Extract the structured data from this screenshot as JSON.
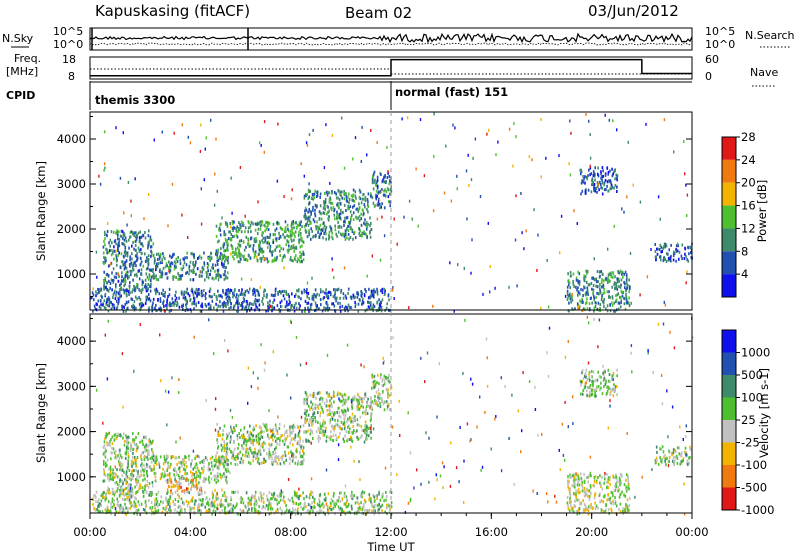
{
  "header": {
    "station": "Kapuskasing (fitACF)",
    "beam": "Beam 02",
    "date": "03/Jun/2012"
  },
  "summary": {
    "nsky_label": "N.Sky",
    "nsearch_label": "N.Search",
    "nave_label": "Nave",
    "freq_label_line1": "Freq.",
    "freq_label_line2": "[MHz]",
    "cpid_label": "CPID",
    "left_ticks_top": [
      "10^5",
      "10^0"
    ],
    "right_ticks_top": [
      "10^5",
      "10^0"
    ],
    "freq_ticks": [
      "18",
      "8"
    ],
    "nave_ticks": [
      "60",
      "0"
    ],
    "modes": [
      {
        "name": "themis 3300",
        "start_hour": 0,
        "end_hour": 12
      },
      {
        "name": "normal (fast) 151",
        "start_hour": 12,
        "end_hour": 24
      }
    ],
    "freq_segments": [
      {
        "start_hour": 0,
        "end_hour": 12,
        "freq_mhz": 9.5
      },
      {
        "start_hour": 12,
        "end_hour": 22,
        "freq_mhz": 16.8
      },
      {
        "start_hour": 22,
        "end_hour": 24,
        "freq_mhz": 10.5
      }
    ]
  },
  "time_axis": {
    "label": "Time UT",
    "ticks": [
      "00:00",
      "04:00",
      "08:00",
      "12:00",
      "16:00",
      "20:00",
      "00:00"
    ]
  },
  "chart_data": [
    {
      "type": "heatmap",
      "name": "power",
      "ylabel": "Slant Range [km]",
      "yticks": [
        "1000",
        "2000",
        "3000",
        "4000"
      ],
      "ylim": [
        200,
        4600
      ],
      "xlim_hours": [
        0,
        24
      ],
      "colorbar_label": "Power [dB]",
      "colorbar_ticks": [
        "4",
        "8",
        "12",
        "16",
        "20",
        "24",
        "28"
      ],
      "colors": [
        "#1010ee",
        "#2050b0",
        "#3e8a6a",
        "#4ec030",
        "#f2b400",
        "#f07a10",
        "#e01818"
      ],
      "clusters": [
        {
          "t0": 0.5,
          "t1": 2.5,
          "r0": 650,
          "r1": 2000,
          "level": 0.3
        },
        {
          "t0": 2.5,
          "t1": 5.5,
          "r0": 900,
          "r1": 1500,
          "level": 0.3
        },
        {
          "t0": 5.0,
          "t1": 8.5,
          "r0": 1300,
          "r1": 2200,
          "level": 0.4
        },
        {
          "t0": 8.5,
          "t1": 11.2,
          "r0": 1800,
          "r1": 2900,
          "level": 0.35
        },
        {
          "t0": 11.2,
          "t1": 12.0,
          "r0": 2500,
          "r1": 3300,
          "level": 0.3
        },
        {
          "t0": 0.0,
          "t1": 12.0,
          "r0": 200,
          "r1": 700,
          "level": 0.25
        },
        {
          "t0": 19.0,
          "t1": 21.5,
          "r0": 200,
          "r1": 1100,
          "level": 0.35
        },
        {
          "t0": 19.5,
          "t1": 21.0,
          "r0": 2800,
          "r1": 3400,
          "level": 0.2
        },
        {
          "t0": 22.5,
          "t1": 24.0,
          "r0": 1300,
          "r1": 1700,
          "level": 0.25
        }
      ]
    },
    {
      "type": "heatmap",
      "name": "velocity",
      "ylabel": "Slant Range [km]",
      "yticks": [
        "1000",
        "2000",
        "3000",
        "4000"
      ],
      "ylim": [
        200,
        4600
      ],
      "xlim_hours": [
        0,
        24
      ],
      "colorbar_label": "Velocity [m s-1]",
      "colorbar_ticks": [
        "1000",
        "500",
        "100",
        "25",
        "-25",
        "-100",
        "-500",
        "-1000"
      ],
      "colors": [
        "#1010ee",
        "#2050b0",
        "#3e8a6a",
        "#4ec030",
        "#c0c0c0",
        "#f2b400",
        "#f07a10",
        "#e01818"
      ],
      "clusters": [
        {
          "t0": 0.5,
          "t1": 2.5,
          "r0": 650,
          "r1": 2000,
          "level": 0.5
        },
        {
          "t0": 2.5,
          "t1": 5.5,
          "r0": 900,
          "r1": 1500,
          "level": 0.5
        },
        {
          "t0": 3.0,
          "t1": 4.5,
          "r0": 700,
          "r1": 1000,
          "level": 0.72
        },
        {
          "t0": 5.0,
          "t1": 8.5,
          "r0": 1300,
          "r1": 2200,
          "level": 0.5
        },
        {
          "t0": 8.5,
          "t1": 11.2,
          "r0": 1800,
          "r1": 2900,
          "level": 0.5
        },
        {
          "t0": 11.2,
          "t1": 12.0,
          "r0": 2500,
          "r1": 3300,
          "level": 0.5
        },
        {
          "t0": 0.0,
          "t1": 12.0,
          "r0": 200,
          "r1": 700,
          "level": 0.5
        },
        {
          "t0": 19.0,
          "t1": 21.5,
          "r0": 200,
          "r1": 1100,
          "level": 0.55
        },
        {
          "t0": 19.5,
          "t1": 21.0,
          "r0": 2800,
          "r1": 3400,
          "level": 0.5
        },
        {
          "t0": 22.5,
          "t1": 24.0,
          "r0": 1300,
          "r1": 1700,
          "level": 0.5
        }
      ]
    }
  ]
}
